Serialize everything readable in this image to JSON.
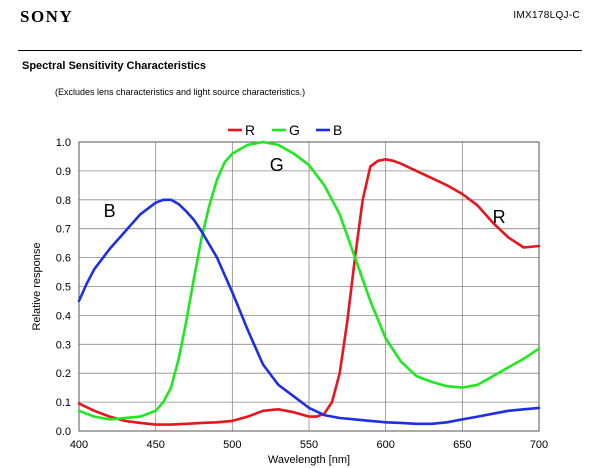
{
  "header": {
    "brand": "SONY",
    "part_number": "IMX178LQJ-C"
  },
  "section": {
    "title": "Spectral Sensitivity Characteristics",
    "note": "(Excludes lens characteristics and light source characteristics.)"
  },
  "chart_data": {
    "type": "line",
    "xlabel": "Wavelength [nm]",
    "ylabel": "Relative response",
    "xlim": [
      400,
      700
    ],
    "ylim": [
      0,
      1.0
    ],
    "xticks": [
      400,
      450,
      500,
      550,
      600,
      650,
      700
    ],
    "yticks": [
      0.0,
      0.1,
      0.2,
      0.3,
      0.4,
      0.5,
      0.6,
      0.7,
      0.8,
      0.9,
      1.0
    ],
    "grid": true,
    "legend_position": "top-center",
    "series": [
      {
        "name": "R",
        "color": "#e8141e",
        "x": [
          400,
          410,
          420,
          430,
          440,
          450,
          460,
          470,
          480,
          490,
          500,
          510,
          520,
          530,
          540,
          550,
          555,
          560,
          565,
          570,
          575,
          580,
          585,
          590,
          595,
          600,
          605,
          610,
          620,
          630,
          640,
          650,
          660,
          670,
          680,
          690,
          700
        ],
        "y": [
          0.095,
          0.07,
          0.05,
          0.035,
          0.028,
          0.022,
          0.022,
          0.025,
          0.028,
          0.03,
          0.035,
          0.05,
          0.07,
          0.075,
          0.065,
          0.05,
          0.05,
          0.06,
          0.1,
          0.2,
          0.38,
          0.6,
          0.8,
          0.915,
          0.935,
          0.94,
          0.935,
          0.925,
          0.9,
          0.875,
          0.85,
          0.82,
          0.78,
          0.72,
          0.67,
          0.635,
          0.64
        ]
      },
      {
        "name": "G",
        "color": "#1ee81e",
        "x": [
          400,
          410,
          420,
          430,
          440,
          450,
          455,
          460,
          465,
          470,
          475,
          480,
          485,
          490,
          495,
          500,
          510,
          520,
          530,
          540,
          550,
          560,
          570,
          580,
          590,
          600,
          610,
          620,
          630,
          640,
          650,
          660,
          670,
          680,
          690,
          700
        ],
        "y": [
          0.07,
          0.05,
          0.04,
          0.045,
          0.05,
          0.07,
          0.1,
          0.15,
          0.25,
          0.38,
          0.53,
          0.67,
          0.78,
          0.87,
          0.93,
          0.96,
          0.99,
          1.0,
          0.99,
          0.96,
          0.92,
          0.85,
          0.75,
          0.6,
          0.45,
          0.32,
          0.24,
          0.19,
          0.17,
          0.155,
          0.15,
          0.16,
          0.19,
          0.22,
          0.25,
          0.285
        ]
      },
      {
        "name": "B",
        "color": "#1e2ee8",
        "x": [
          400,
          405,
          410,
          420,
          430,
          440,
          450,
          455,
          460,
          465,
          470,
          475,
          480,
          490,
          500,
          510,
          520,
          530,
          540,
          550,
          560,
          570,
          580,
          590,
          600,
          610,
          620,
          630,
          640,
          650,
          660,
          670,
          680,
          690,
          700
        ],
        "y": [
          0.45,
          0.51,
          0.56,
          0.63,
          0.69,
          0.75,
          0.79,
          0.8,
          0.8,
          0.785,
          0.76,
          0.73,
          0.69,
          0.6,
          0.48,
          0.35,
          0.23,
          0.16,
          0.12,
          0.08,
          0.055,
          0.045,
          0.04,
          0.035,
          0.03,
          0.028,
          0.025,
          0.025,
          0.03,
          0.04,
          0.05,
          0.06,
          0.07,
          0.075,
          0.08
        ]
      }
    ],
    "curve_labels": [
      {
        "text": "B",
        "x": 420,
        "y": 0.74
      },
      {
        "text": "G",
        "x": 529,
        "y": 0.9
      },
      {
        "text": "R",
        "x": 674,
        "y": 0.72
      }
    ]
  }
}
